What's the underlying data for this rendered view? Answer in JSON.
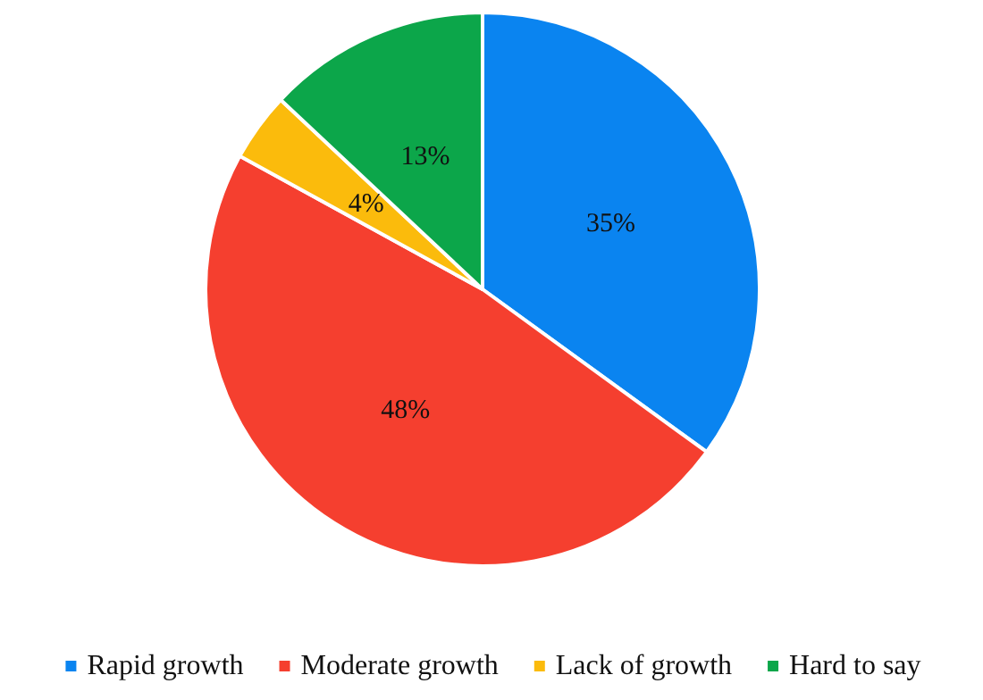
{
  "chart_data": {
    "type": "pie",
    "categories": [
      "Rapid growth",
      "Moderate growth",
      "Lack of growth",
      "Hard to say"
    ],
    "values": [
      35,
      48,
      4,
      13
    ],
    "colors": [
      "#0a84f0",
      "#f53f2f",
      "#fbbb0c",
      "#0ca64a"
    ],
    "value_labels": [
      "35%",
      "48%",
      "4%",
      "13%"
    ],
    "legend": "bottom"
  }
}
